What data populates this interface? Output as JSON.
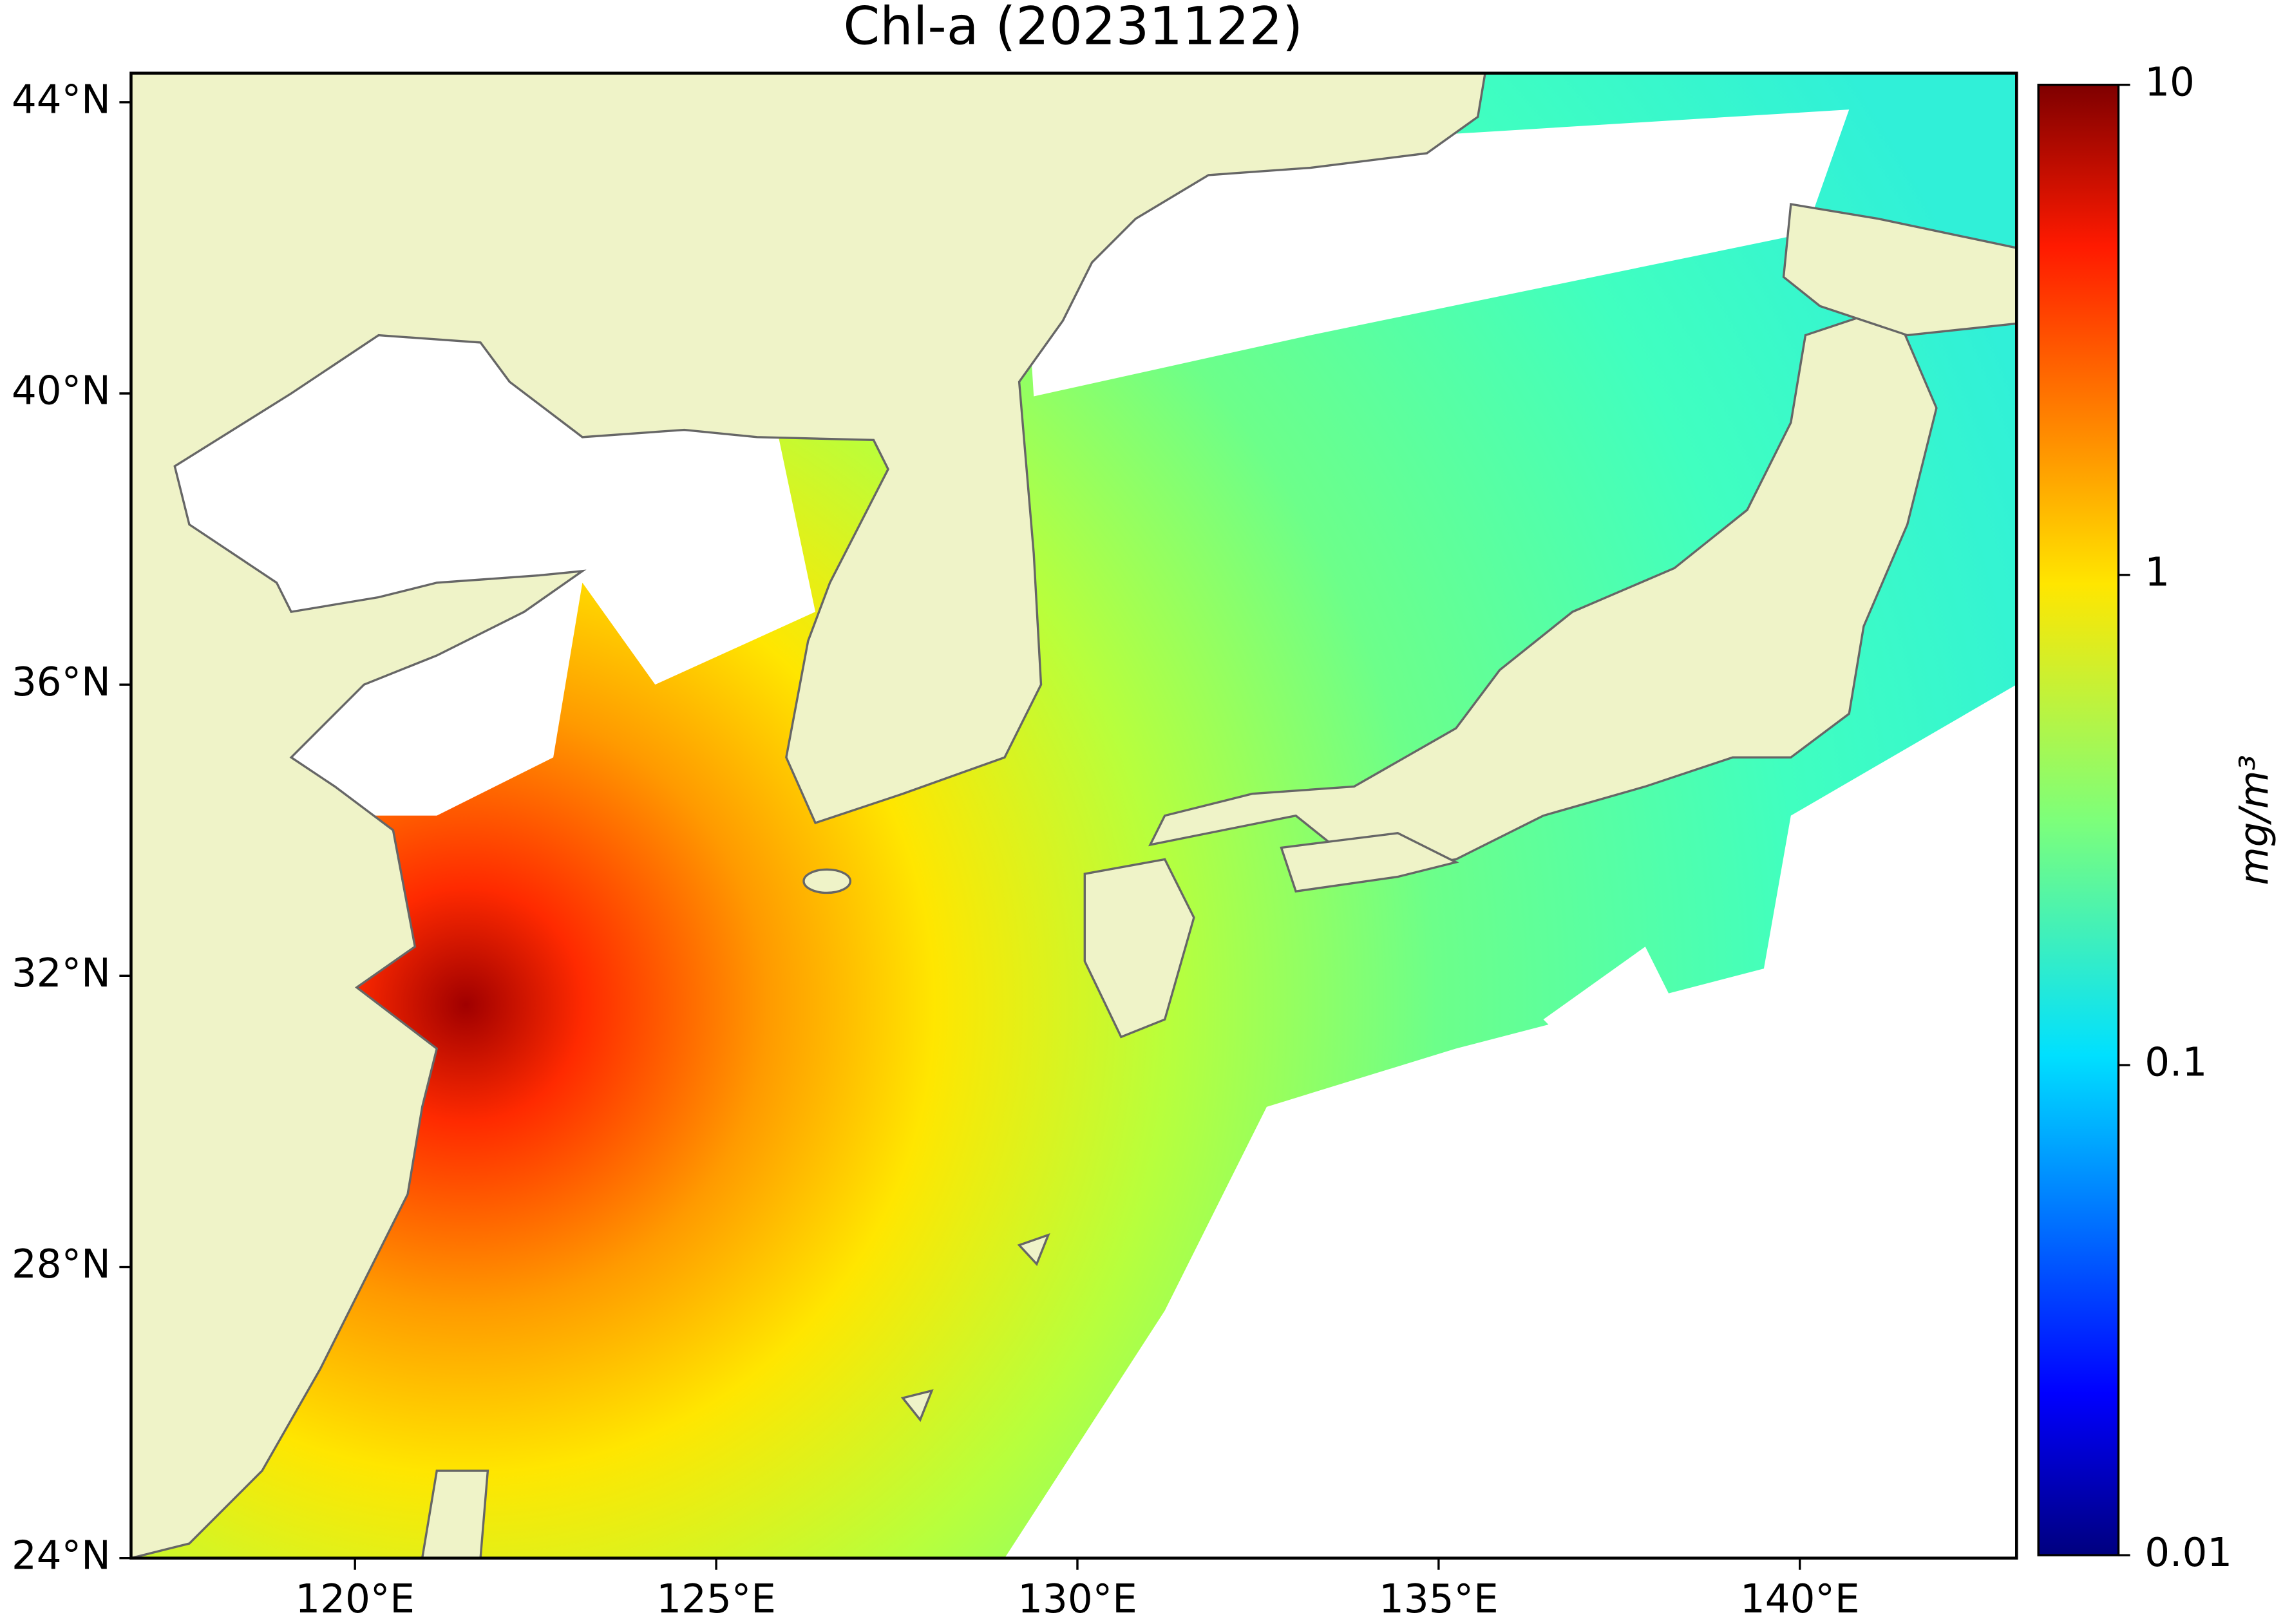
{
  "title": "Chl-a (20231122)",
  "map": {
    "lonlim": [
      116.9,
      143.0
    ],
    "latlim": [
      24,
      44.4
    ],
    "lonticks": [
      {
        "value": 120,
        "label": "120°E"
      },
      {
        "value": 125,
        "label": "125°E"
      },
      {
        "value": 130,
        "label": "130°E"
      },
      {
        "value": 135,
        "label": "135°E"
      },
      {
        "value": 140,
        "label": "140°E"
      }
    ],
    "latticks": [
      {
        "value": 24,
        "label": "24°N"
      },
      {
        "value": 28,
        "label": "28°N"
      },
      {
        "value": 32,
        "label": "32°N"
      },
      {
        "value": 36,
        "label": "36°N"
      },
      {
        "value": 40,
        "label": "40°N"
      },
      {
        "value": 44,
        "label": "44°N"
      }
    ]
  },
  "colorbar": {
    "label": "mg/m³",
    "scale": "log",
    "colormap": "jet",
    "lim": [
      0.01,
      10
    ],
    "ticks": [
      0.01,
      0.1,
      1,
      10
    ]
  }
}
